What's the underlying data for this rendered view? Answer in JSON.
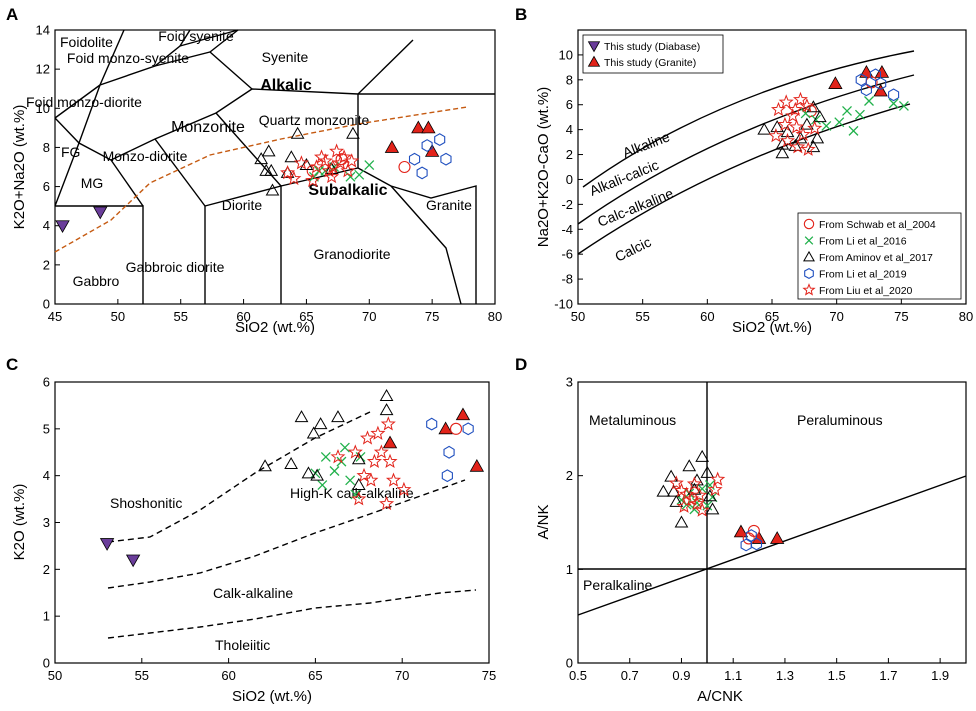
{
  "colors": {
    "triangle_study": "#e2231a",
    "diabase": "#6a3d9a",
    "schwab": "#e2231a",
    "li2016": "#22b14c",
    "aminov": "#000000",
    "li2019": "#1f4fbf",
    "liu": "#e2231a",
    "tas_dash": "#c55a11"
  },
  "chart_data": [
    {
      "panel": "A",
      "type": "scatter",
      "title": "",
      "xlabel": "SiO2 (wt.%)",
      "ylabel": "K2O+Na2O (wt.%)",
      "xlim": [
        45,
        80
      ],
      "ylim": [
        0,
        14
      ],
      "xticks": [
        "45",
        "50",
        "55",
        "60",
        "65",
        "70",
        "75",
        "80"
      ],
      "yticks": [
        "0",
        "2",
        "4",
        "6",
        "8",
        "10",
        "12",
        "14"
      ],
      "field_labels": [
        "Foidolite",
        "Foid syenite",
        "Foid monzo-syenite",
        "Syenite",
        "Alkalic",
        "Foid monzo-diorite",
        "Monzonite",
        "Quartz monzonite",
        "FG",
        "Monzo-diorite",
        "MG",
        "Subalkalic",
        "Diorite",
        "Granite",
        "Granodiorite",
        "Gabbro",
        "Gabbroic diorite"
      ],
      "series": [
        {
          "name": "This study (Diabase)",
          "marker": "triangle-down",
          "points": [
            [
              45.6,
              4.0
            ],
            [
              48.6,
              4.7
            ]
          ]
        },
        {
          "name": "This study (Granite)",
          "marker": "triangle",
          "points": [
            [
              71.8,
              8.0
            ],
            [
              73.9,
              9.0
            ],
            [
              74.7,
              9.0
            ],
            [
              75.0,
              7.8
            ]
          ]
        },
        {
          "name": "From Schwab et al_2004",
          "marker": "circle",
          "points": [
            [
              72.8,
              7.0
            ],
            [
              65.5,
              6.8
            ],
            [
              67.8,
              7.4
            ]
          ]
        },
        {
          "name": "From Li et al_2016",
          "marker": "x",
          "points": [
            [
              66,
              6.8
            ],
            [
              67.2,
              7.0
            ],
            [
              68.5,
              6.5
            ],
            [
              69.2,
              6.6
            ],
            [
              70,
              7.1
            ],
            [
              65.6,
              6.5
            ],
            [
              66.5,
              6.8
            ]
          ]
        },
        {
          "name": "From Aminov et al_2017",
          "marker": "triangle-open",
          "points": [
            [
              61.4,
              7.4
            ],
            [
              62,
              7.8
            ],
            [
              62.2,
              6.8
            ],
            [
              63.8,
              7.5
            ],
            [
              64.3,
              8.7
            ],
            [
              65,
              7.1
            ],
            [
              67,
              6.9
            ],
            [
              68.7,
              8.7
            ],
            [
              61.8,
              6.8
            ],
            [
              62.3,
              5.8
            ],
            [
              63.5,
              6.7
            ]
          ]
        },
        {
          "name": "From Li et al_2019",
          "marker": "hexagon",
          "points": [
            [
              73.6,
              7.4
            ],
            [
              74.6,
              8.1
            ],
            [
              75.6,
              8.4
            ],
            [
              76.1,
              7.4
            ],
            [
              74.2,
              6.7
            ]
          ]
        },
        {
          "name": "From Liu et al_2020",
          "marker": "star",
          "points": [
            [
              63.5,
              6.7
            ],
            [
              64,
              6.4
            ],
            [
              64.6,
              7.2
            ],
            [
              65.5,
              6.3
            ],
            [
              65.8,
              7.0
            ],
            [
              66.2,
              7.5
            ],
            [
              66.5,
              7.3
            ],
            [
              66.8,
              6.8
            ],
            [
              67.1,
              7.0
            ],
            [
              67.4,
              7.8
            ],
            [
              67.7,
              7.2
            ],
            [
              68,
              7.5
            ],
            [
              68.3,
              6.8
            ],
            [
              68.6,
              7.3
            ],
            [
              67,
              6.5
            ]
          ]
        }
      ]
    },
    {
      "panel": "B",
      "type": "scatter",
      "title": "",
      "xlabel": "SiO2 (wt.%)",
      "ylabel": "Na2O+K2O-CaO (wt.%)",
      "xlim": [
        50,
        80
      ],
      "ylim": [
        -10,
        12
      ],
      "xticks": [
        "50",
        "55",
        "60",
        "65",
        "70",
        "75",
        "80"
      ],
      "yticks": [
        "-10",
        "-8",
        "-6",
        "-4",
        "-2",
        "0",
        "2",
        "4",
        "6",
        "8",
        "10"
      ],
      "field_labels": [
        "Alkaline",
        "Alkali-calcic",
        "Calc-alkaline",
        "Calcic"
      ],
      "legend": [
        "This study (Diabase)",
        "This study (Granite)",
        "From Schwab et al_2004",
        "From Li et al_2016",
        "From Aminov et al_2017",
        "From Li et al_2019",
        "From Liu et al_2020"
      ],
      "series": [
        {
          "name": "This study (Granite)",
          "marker": "triangle",
          "points": [
            [
              69.9,
              7.7
            ],
            [
              72.3,
              8.6
            ],
            [
              73.5,
              8.6
            ],
            [
              73.4,
              7.1
            ]
          ]
        },
        {
          "name": "From Schwab et al_2004",
          "marker": "circle",
          "points": [
            [
              72.7,
              7.8
            ],
            [
              68,
              5.5
            ]
          ]
        },
        {
          "name": "From Li et al_2016",
          "marker": "x",
          "points": [
            [
              67.6,
              5.3
            ],
            [
              68.4,
              4.8
            ],
            [
              69.2,
              4.3
            ],
            [
              70.2,
              4.6
            ],
            [
              70.8,
              5.5
            ],
            [
              71.3,
              3.9
            ],
            [
              71.8,
              5.2
            ],
            [
              72.5,
              6.3
            ],
            [
              74.4,
              6.1
            ],
            [
              75.2,
              5.9
            ]
          ]
        },
        {
          "name": "From Aminov et al_2017",
          "marker": "triangle-open",
          "points": [
            [
              64.4,
              4.0
            ],
            [
              65.4,
              4.2
            ],
            [
              66.2,
              3.8
            ],
            [
              65.8,
              2.8
            ],
            [
              66.8,
              2.7
            ],
            [
              67.2,
              3.3
            ],
            [
              68.2,
              2.6
            ],
            [
              68.5,
              3.3
            ],
            [
              68.7,
              5.0
            ],
            [
              68.2,
              5.8
            ],
            [
              65.8,
              2.1
            ],
            [
              67.7,
              4.4
            ]
          ]
        },
        {
          "name": "From Li et al_2019",
          "marker": "hexagon",
          "points": [
            [
              71.9,
              8.0
            ],
            [
              72.3,
              7.2
            ],
            [
              73.4,
              7.7
            ],
            [
              74.4,
              6.8
            ],
            [
              73,
              8.4
            ]
          ]
        },
        {
          "name": "From Liu et al_2020",
          "marker": "star",
          "points": [
            [
              65.5,
              5.6
            ],
            [
              66.1,
              6.2
            ],
            [
              66.6,
              5.1
            ],
            [
              67.2,
              6.4
            ],
            [
              67.7,
              5.9
            ],
            [
              66,
              4.4
            ],
            [
              66.9,
              4.2
            ],
            [
              67.4,
              3.6
            ],
            [
              65.3,
              3.5
            ],
            [
              66.2,
              3.1
            ],
            [
              67,
              2.6
            ],
            [
              67.8,
              2.4
            ],
            [
              66.8,
              5.6
            ],
            [
              68.3,
              4.1
            ]
          ]
        }
      ]
    },
    {
      "panel": "C",
      "type": "scatter",
      "title": "",
      "xlabel": "SiO2 (wt.%)",
      "ylabel": "K2O (wt.%)",
      "xlim": [
        50,
        75
      ],
      "ylim": [
        0,
        6
      ],
      "xticks": [
        "50",
        "55",
        "60",
        "65",
        "70",
        "75"
      ],
      "yticks": [
        "0",
        "1",
        "2",
        "3",
        "4",
        "5",
        "6"
      ],
      "field_labels": [
        "Shoshonitic",
        "High-K calk-alkaline",
        "Calk-alkaline",
        "Tholeiitic"
      ],
      "series": [
        {
          "name": "This study (Diabase)",
          "marker": "triangle-down",
          "points": [
            [
              53,
              2.55
            ],
            [
              54.5,
              2.2
            ]
          ]
        },
        {
          "name": "This study (Granite)",
          "marker": "triangle",
          "points": [
            [
              69.3,
              4.7
            ],
            [
              72.5,
              5.0
            ],
            [
              73.5,
              5.3
            ],
            [
              74.3,
              4.2
            ]
          ]
        },
        {
          "name": "From Schwab et al_2004",
          "marker": "circle",
          "points": [
            [
              73.1,
              5.0
            ]
          ]
        },
        {
          "name": "From Li et al_2016",
          "marker": "x",
          "points": [
            [
              65,
              4.05
            ],
            [
              65.6,
              4.4
            ],
            [
              66.1,
              4.1
            ],
            [
              66.5,
              4.3
            ],
            [
              67,
              3.9
            ],
            [
              67.3,
              3.6
            ],
            [
              66.7,
              4.6
            ],
            [
              65.4,
              3.8
            ],
            [
              67.6,
              4.4
            ]
          ]
        },
        {
          "name": "From Aminov et al_2017",
          "marker": "triangle-open",
          "points": [
            [
              62.1,
              4.2
            ],
            [
              63.6,
              4.25
            ],
            [
              64.2,
              5.25
            ],
            [
              64.6,
              4.05
            ],
            [
              64.9,
              4.9
            ],
            [
              65.1,
              4.0
            ],
            [
              65.3,
              5.1
            ],
            [
              66.3,
              5.25
            ],
            [
              67.5,
              4.35
            ],
            [
              67.5,
              3.8
            ],
            [
              69.1,
              5.4
            ],
            [
              69.1,
              5.7
            ]
          ]
        },
        {
          "name": "From Li et al_2019",
          "marker": "hexagon",
          "points": [
            [
              71.7,
              5.1
            ],
            [
              72.6,
              4.0
            ],
            [
              72.7,
              4.5
            ],
            [
              73.8,
              5.0
            ]
          ]
        },
        {
          "name": "From Liu et al_2020",
          "marker": "star",
          "points": [
            [
              66.3,
              4.4
            ],
            [
              67.3,
              4.5
            ],
            [
              67.5,
              3.5
            ],
            [
              68,
              4.8
            ],
            [
              68.2,
              3.9
            ],
            [
              68.6,
              4.9
            ],
            [
              68.8,
              4.5
            ],
            [
              69.1,
              3.4
            ],
            [
              69.3,
              4.3
            ],
            [
              69.5,
              3.9
            ],
            [
              70.1,
              3.7
            ],
            [
              68.4,
              4.3
            ],
            [
              67.8,
              4.0
            ],
            [
              69.2,
              5.1
            ]
          ]
        }
      ]
    },
    {
      "panel": "D",
      "type": "scatter",
      "title": "",
      "xlabel": "A/CNK",
      "ylabel": "A/NK",
      "xlim": [
        0.5,
        2.0
      ],
      "ylim": [
        0,
        3
      ],
      "xticks": [
        "0.5",
        "0.7",
        "0.9",
        "1.1",
        "1.3",
        "1.5",
        "1.7",
        "1.9"
      ],
      "yticks": [
        "0",
        "1",
        "2",
        "3"
      ],
      "field_labels": [
        "Metaluminous",
        "Peraluminous",
        "Peralkaline"
      ],
      "series": [
        {
          "name": "This study (Granite)",
          "marker": "triangle",
          "points": [
            [
              1.13,
              1.4
            ],
            [
              1.2,
              1.33
            ],
            [
              1.27,
              1.33
            ]
          ]
        },
        {
          "name": "From Schwab et al_2004",
          "marker": "circle",
          "points": [
            [
              1.18,
              1.41
            ],
            [
              1.16,
              1.33
            ]
          ]
        },
        {
          "name": "From Li et al_2016",
          "marker": "x",
          "points": [
            [
              0.9,
              1.74
            ],
            [
              0.93,
              1.81
            ],
            [
              0.96,
              1.71
            ],
            [
              0.98,
              1.86
            ],
            [
              1.0,
              1.68
            ],
            [
              1.02,
              1.77
            ],
            [
              0.95,
              1.64
            ],
            [
              1.01,
              1.9
            ],
            [
              0.92,
              1.69
            ]
          ]
        },
        {
          "name": "From Aminov et al_2017",
          "marker": "triangle-open",
          "points": [
            [
              0.83,
              1.83
            ],
            [
              0.86,
              1.99
            ],
            [
              0.88,
              1.72
            ],
            [
              0.9,
              1.5
            ],
            [
              0.93,
              2.1
            ],
            [
              0.96,
              1.95
            ],
            [
              0.98,
              2.2
            ],
            [
              1.0,
              2.03
            ],
            [
              1.02,
              1.64
            ],
            [
              0.95,
              1.85
            ],
            [
              0.87,
              1.83
            ],
            [
              1.01,
              1.78
            ]
          ]
        },
        {
          "name": "From Li et al_2019",
          "marker": "hexagon",
          "points": [
            [
              1.15,
              1.26
            ],
            [
              1.17,
              1.36
            ],
            [
              1.19,
              1.27
            ]
          ]
        },
        {
          "name": "From Liu et al_2020",
          "marker": "star",
          "points": [
            [
              0.88,
              1.92
            ],
            [
              0.9,
              1.84
            ],
            [
              0.92,
              1.8
            ],
            [
              0.94,
              1.75
            ],
            [
              0.96,
              1.7
            ],
            [
              0.98,
              1.63
            ],
            [
              1.03,
              1.85
            ],
            [
              1.04,
              1.96
            ],
            [
              0.95,
              1.91
            ],
            [
              0.97,
              1.79
            ],
            [
              0.91,
              1.67
            ]
          ]
        }
      ]
    }
  ]
}
